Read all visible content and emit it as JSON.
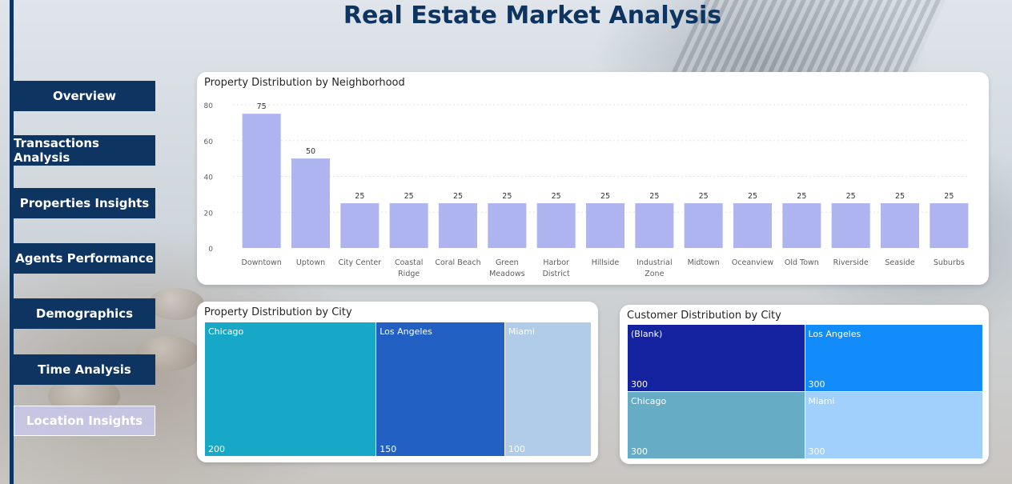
{
  "page": {
    "title": "Real Estate Market Analysis"
  },
  "nav": {
    "items": [
      {
        "label": "Overview",
        "active": false
      },
      {
        "label": "Transactions Analysis",
        "active": false
      },
      {
        "label": "Properties Insights",
        "active": false
      },
      {
        "label": "Agents Performance",
        "active": false
      },
      {
        "label": "Demographics",
        "active": false
      },
      {
        "label": "Time Analysis",
        "active": false
      },
      {
        "label": "Location Insights",
        "active": true
      }
    ]
  },
  "neighborhood_card": {
    "title": "Property Distribution by Neighborhood"
  },
  "city_card": {
    "title": "Property Distribution by City"
  },
  "customer_card": {
    "title": "Customer Distribution by City"
  },
  "chart_data": [
    {
      "type": "bar",
      "title": "Property Distribution by Neighborhood",
      "categories": [
        "Downtown",
        "Uptown",
        "City Center",
        "Coastal Ridge",
        "Coral Beach",
        "Green Meadows",
        "Harbor District",
        "Hillside",
        "Industrial Zone",
        "Midtown",
        "Oceanview",
        "Old Town",
        "Riverside",
        "Seaside",
        "Suburbs"
      ],
      "category_lines": [
        [
          "Downtown"
        ],
        [
          "Uptown"
        ],
        [
          "City Center"
        ],
        [
          "Coastal",
          "Ridge"
        ],
        [
          "Coral Beach"
        ],
        [
          "Green",
          "Meadows"
        ],
        [
          "Harbor",
          "District"
        ],
        [
          "Hillside"
        ],
        [
          "Industrial",
          "Zone"
        ],
        [
          "Midtown"
        ],
        [
          "Oceanview"
        ],
        [
          "Old Town"
        ],
        [
          "Riverside"
        ],
        [
          "Seaside"
        ],
        [
          "Suburbs"
        ]
      ],
      "values": [
        75,
        50,
        25,
        25,
        25,
        25,
        25,
        25,
        25,
        25,
        25,
        25,
        25,
        25,
        25
      ],
      "yticks": [
        0,
        20,
        40,
        60,
        80
      ],
      "ylim": [
        0,
        80
      ],
      "grid": true,
      "color": "#adb4f0"
    },
    {
      "type": "treemap",
      "title": "Property Distribution by City",
      "items": [
        {
          "label": "Chicago",
          "value": 200,
          "color": "#17a8c8"
        },
        {
          "label": "Los Angeles",
          "value": 150,
          "color": "#2360c4"
        },
        {
          "label": "Miami",
          "value": 100,
          "color": "#b0cce9"
        }
      ]
    },
    {
      "type": "treemap",
      "title": "Customer Distribution by City",
      "items": [
        {
          "label": "(Blank)",
          "value": 300,
          "color": "#1523a0"
        },
        {
          "label": "Los Angeles",
          "value": 300,
          "color": "#118cfa"
        },
        {
          "label": "Chicago",
          "value": 300,
          "color": "#66acc4"
        },
        {
          "label": "Miami",
          "value": 300,
          "color": "#a0d0fb"
        }
      ]
    }
  ]
}
